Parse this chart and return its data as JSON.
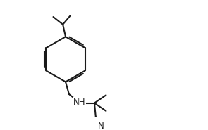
{
  "bg_color": "#ffffff",
  "line_color": "#1a1a1a",
  "bond_width": 1.5,
  "figsize": [
    2.95,
    1.85
  ],
  "dpi": 100
}
